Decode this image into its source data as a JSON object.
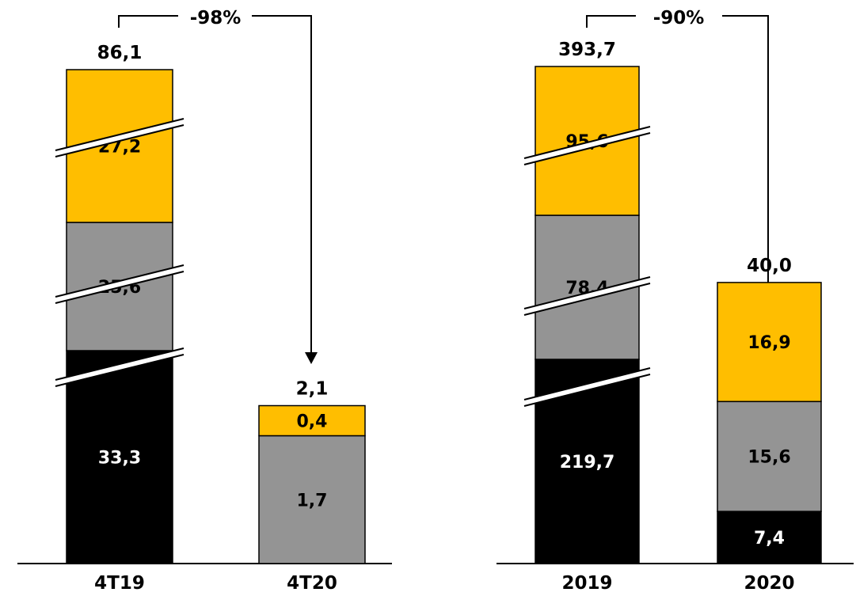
{
  "colors": {
    "top": "#FFBE00",
    "middle": "#949494",
    "bottom": "#000000",
    "label_on_dark": "#ffffff",
    "label_on_light": "#000000"
  },
  "chart_data": [
    {
      "type": "bar",
      "stacked": true,
      "axis_break": true,
      "categories": [
        "4T19",
        "4T20"
      ],
      "totals": [
        "86,1",
        "2,1"
      ],
      "series": [
        {
          "values": [
            33.3,
            0
          ],
          "labels": [
            "33,3",
            ""
          ]
        },
        {
          "values": [
            25.6,
            1.7
          ],
          "labels": [
            "25,6",
            "1,7"
          ]
        },
        {
          "values": [
            27.2,
            0.4
          ],
          "labels": [
            "27,2",
            "0,4"
          ]
        }
      ],
      "change_label": "-98%"
    },
    {
      "type": "bar",
      "stacked": true,
      "axis_break": true,
      "categories": [
        "2019",
        "2020"
      ],
      "totals": [
        "393,7",
        "40,0"
      ],
      "series": [
        {
          "values": [
            219.7,
            7.4
          ],
          "labels": [
            "219,7",
            "7,4"
          ]
        },
        {
          "values": [
            78.4,
            15.6
          ],
          "labels": [
            "78,4",
            "15,6"
          ]
        },
        {
          "values": [
            95.6,
            16.9
          ],
          "labels": [
            "95,6",
            "16,9"
          ]
        }
      ],
      "change_label": "-90%"
    }
  ]
}
